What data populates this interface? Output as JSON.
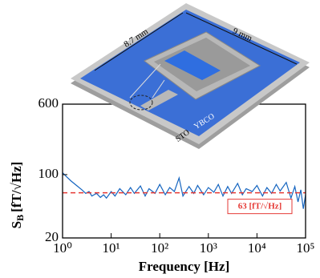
{
  "chart_data": {
    "type": "line",
    "x_label": "Frequency [Hz]",
    "y_label": {
      "symbol": "S",
      "subscript": "B",
      "unit": "[fT/√Hz]"
    },
    "log_x": true,
    "log_y": true,
    "xlim": [
      1,
      100000
    ],
    "xticks": [
      {
        "value": 1,
        "label": "10⁰"
      },
      {
        "value": 10,
        "label": "10¹"
      },
      {
        "value": 100,
        "label": "10²"
      },
      {
        "value": 1000,
        "label": "10³"
      },
      {
        "value": 10000,
        "label": "10⁴"
      },
      {
        "value": 100000,
        "label": "10⁵"
      }
    ],
    "ylim": [
      20,
      600
    ],
    "yticks": [
      20,
      100,
      600
    ],
    "series": [
      {
        "color": "#1565c0",
        "x": [
          1,
          1.2,
          1.5,
          2,
          2.5,
          3,
          3.5,
          4,
          5,
          6,
          7,
          8,
          10,
          12,
          15,
          20,
          25,
          30,
          40,
          50,
          60,
          80,
          100,
          130,
          160,
          200,
          250,
          300,
          400,
          500,
          600,
          800,
          1000,
          1300,
          1600,
          2000,
          2500,
          3000,
          4000,
          5000,
          6000,
          8000,
          10000,
          13000,
          16000,
          20000,
          25000,
          30000,
          40000,
          50000,
          60000,
          70000,
          80000,
          90000,
          100000
        ],
        "values": [
          105,
          95,
          85,
          75,
          68,
          62,
          65,
          58,
          62,
          56,
          60,
          55,
          65,
          58,
          70,
          60,
          72,
          62,
          75,
          58,
          70,
          62,
          78,
          60,
          72,
          65,
          92,
          58,
          74,
          62,
          76,
          60,
          72,
          64,
          78,
          58,
          74,
          62,
          80,
          60,
          70,
          65,
          76,
          58,
          72,
          62,
          78,
          66,
          82,
          55,
          74,
          50,
          68,
          42,
          60
        ]
      }
    ],
    "reference_line": {
      "value": 63,
      "label": "63  [fT/√Hz]",
      "color": "#e53935"
    },
    "annotations": [
      "8.7 mm",
      "9 mm",
      "YBCO",
      "STO"
    ]
  }
}
